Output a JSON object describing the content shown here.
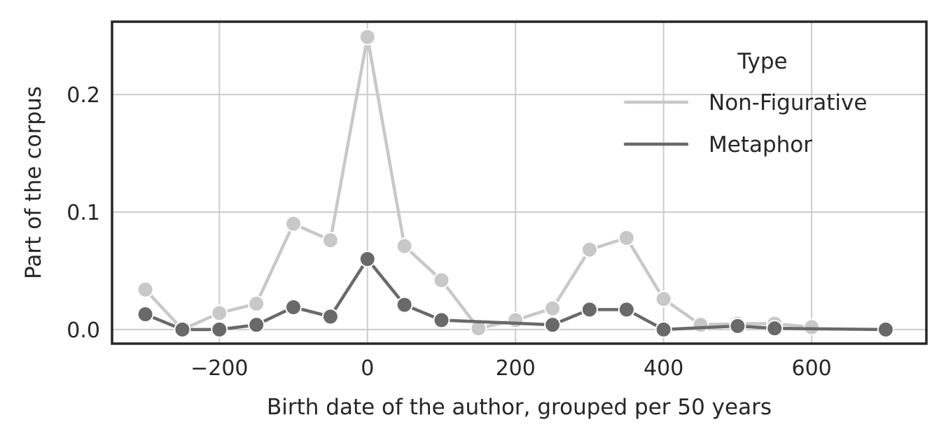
{
  "chart_data": {
    "type": "line",
    "xlabel": "Birth date of the author, grouped per 50 years",
    "ylabel": "Part of the corpus",
    "xlim": [
      -345,
      755
    ],
    "ylim": [
      -0.012,
      0.262
    ],
    "xticks": [
      -200,
      0,
      200,
      400,
      600
    ],
    "xtick_labels": [
      "−200",
      "0",
      "200",
      "400",
      "600"
    ],
    "yticks": [
      0.0,
      0.1,
      0.2
    ],
    "ytick_labels": [
      "0.0",
      "0.1",
      "0.2"
    ],
    "grid": true,
    "legend": {
      "title": "Type",
      "placement": "top-right"
    },
    "series": [
      {
        "name": "Non-Figurative",
        "color": "#c8c8c8",
        "x": [
          -300,
          -250,
          -200,
          -150,
          -100,
          -50,
          0,
          50,
          100,
          150,
          200,
          250,
          300,
          350,
          400,
          450,
          500,
          550,
          600
        ],
        "y": [
          0.034,
          0.0,
          0.014,
          0.022,
          0.09,
          0.076,
          0.249,
          0.071,
          0.042,
          0.001,
          0.008,
          0.018,
          0.068,
          0.078,
          0.026,
          0.004,
          0.005,
          0.005,
          0.002
        ]
      },
      {
        "name": "Metaphor",
        "color": "#696969",
        "x": [
          -300,
          -250,
          -200,
          -150,
          -100,
          -50,
          0,
          50,
          100,
          250,
          300,
          350,
          400,
          500,
          550,
          700
        ],
        "y": [
          0.013,
          0.0,
          0.0,
          0.004,
          0.019,
          0.011,
          0.06,
          0.021,
          0.008,
          0.004,
          0.017,
          0.017,
          0.0,
          0.003,
          0.001,
          0.0
        ]
      }
    ]
  }
}
